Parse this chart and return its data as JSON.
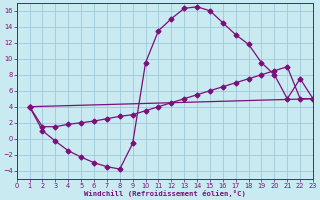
{
  "background_color": "#c8eaf0",
  "line_color": "#7b107b",
  "grid_color": "#a0c8d8",
  "xlabel": "Windchill (Refroidissement éolien,°C)",
  "xlim": [
    0,
    23
  ],
  "ylim": [
    -5,
    17
  ],
  "xticks": [
    0,
    1,
    2,
    3,
    4,
    5,
    6,
    7,
    8,
    9,
    10,
    11,
    12,
    13,
    14,
    15,
    16,
    17,
    18,
    19,
    20,
    21,
    22,
    23
  ],
  "yticks": [
    -4,
    -2,
    0,
    2,
    4,
    6,
    8,
    10,
    12,
    14,
    16
  ],
  "curve1_x": [
    1,
    2,
    3,
    4,
    5,
    6,
    7,
    8,
    9,
    10,
    11,
    12,
    13,
    14,
    15,
    16,
    17,
    18,
    19,
    20,
    21,
    22,
    23
  ],
  "curve1_y": [
    4,
    1,
    -0.3,
    -1.5,
    -2.3,
    -3.0,
    -3.5,
    -3.8,
    -0.6,
    9.5,
    13.5,
    15.0,
    16.3,
    16.5,
    16.0,
    14.5,
    13.0,
    11.8,
    9.5,
    8.0,
    5.0,
    7.5,
    5.0
  ],
  "curve2_x": [
    1,
    2,
    3,
    4,
    5,
    6,
    7,
    8,
    9,
    10,
    11,
    12,
    13,
    14,
    15,
    16,
    17,
    18,
    19,
    20,
    21,
    22,
    23
  ],
  "curve2_y": [
    4,
    1.5,
    1.5,
    1.8,
    2.0,
    2.2,
    2.5,
    2.8,
    3.0,
    3.5,
    4.0,
    4.5,
    5.0,
    5.5,
    6.0,
    6.5,
    7.0,
    7.5,
    8.0,
    8.5,
    9.0,
    5.0,
    5.0
  ],
  "curve3_x": [
    1,
    23
  ],
  "curve3_y": [
    4,
    5
  ],
  "markersize": 2.5,
  "linewidth": 0.9,
  "tick_fontsize": 4.8,
  "xlabel_fontsize": 5.2
}
